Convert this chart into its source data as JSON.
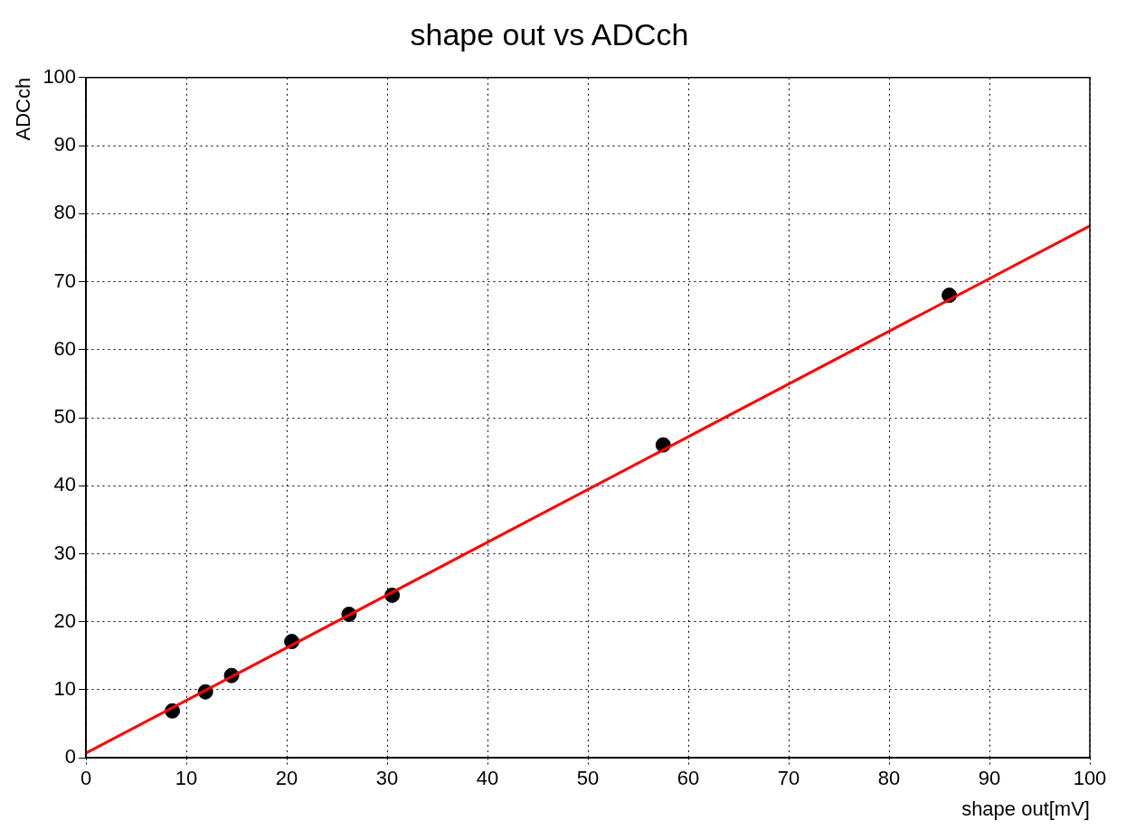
{
  "chart_data": {
    "type": "scatter",
    "title": "shape out vs ADCch",
    "xlabel": "shape out[mV]",
    "ylabel": "ADCch",
    "xlim": [
      0,
      100
    ],
    "xticks": [
      0,
      10,
      20,
      30,
      40,
      50,
      60,
      70,
      80,
      90,
      100
    ],
    "ylim": [
      0,
      100
    ],
    "yticks": [
      0,
      10,
      20,
      30,
      40,
      50,
      60,
      70,
      80,
      90,
      100
    ],
    "grid": true,
    "legend": false,
    "marker": "circle",
    "series": [
      {
        "color": "#000000",
        "x": [
          8.6,
          11.9,
          14.5,
          20.5,
          26.2,
          30.5,
          57.5,
          86.0
        ],
        "values": [
          6.9,
          9.7,
          12.1,
          17.1,
          21.1,
          23.9,
          46.0,
          68.0
        ]
      },
      {
        "type": "line",
        "color": "#ff0000",
        "marker": "none",
        "line_style": "solid",
        "x": [
          0,
          100
        ],
        "values": [
          0.7,
          78.2
        ]
      }
    ]
  }
}
